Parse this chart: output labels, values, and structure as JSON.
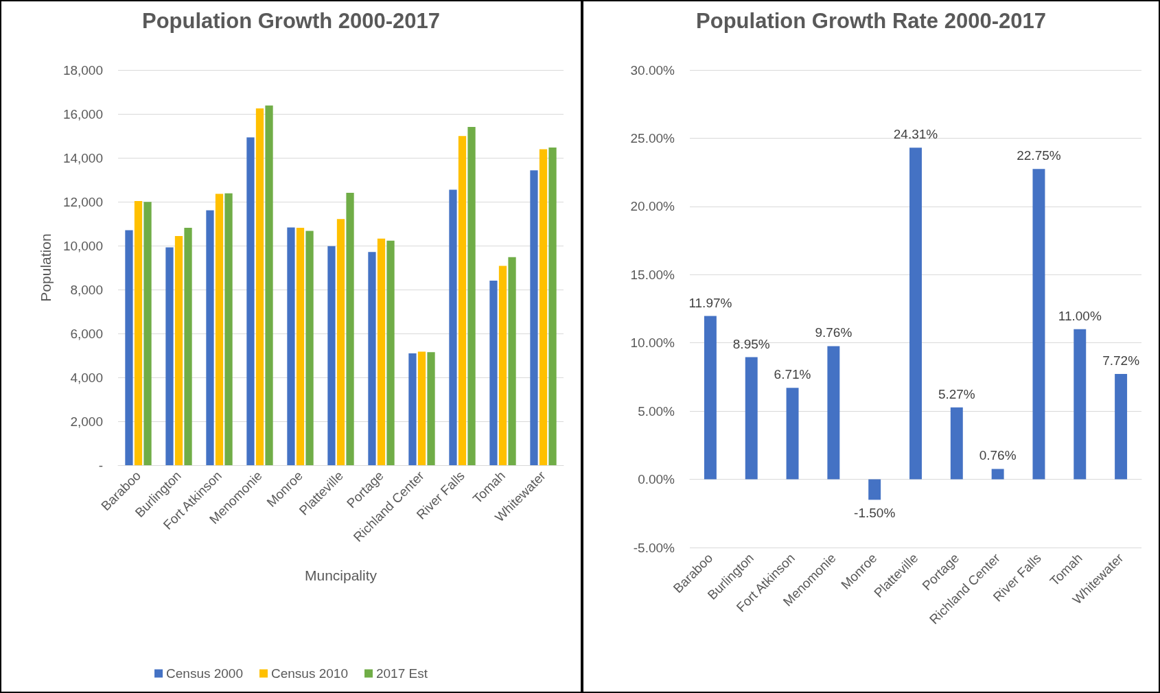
{
  "chart_data": [
    {
      "type": "bar",
      "title": "Population Growth 2000-2017",
      "xlabel": "Muncipality",
      "ylabel": "Population",
      "categories": [
        "Baraboo",
        "Burlington",
        "Fort Atkinson",
        "Menomonie",
        "Monroe",
        "Platteville",
        "Portage",
        "Richland Center",
        "River Falls",
        "Tomah",
        "Whitewater"
      ],
      "series": [
        {
          "name": "Census 2000",
          "color": "#4472c4",
          "values": [
            10700,
            9920,
            11610,
            14930,
            10830,
            9980,
            9710,
            5090,
            12550,
            8410,
            13430
          ]
        },
        {
          "name": "Census 2010",
          "color": "#ffc000",
          "values": [
            12030,
            10440,
            12360,
            16250,
            10810,
            11210,
            10320,
            5170,
            14990,
            9080,
            14390
          ]
        },
        {
          "name": "2017 Est",
          "color": "#70ad47",
          "values": [
            11990,
            10810,
            12380,
            16380,
            10670,
            12410,
            10230,
            5150,
            15410,
            9480,
            14470
          ]
        }
      ],
      "ylim": [
        0,
        18000
      ],
      "yticks": [
        {
          "value": 0,
          "label": "-"
        },
        {
          "value": 2000,
          "label": "2,000"
        },
        {
          "value": 4000,
          "label": "4,000"
        },
        {
          "value": 6000,
          "label": "6,000"
        },
        {
          "value": 8000,
          "label": "8,000"
        },
        {
          "value": 10000,
          "label": "10,000"
        },
        {
          "value": 12000,
          "label": "12,000"
        },
        {
          "value": 14000,
          "label": "14,000"
        },
        {
          "value": 16000,
          "label": "16,000"
        },
        {
          "value": 18000,
          "label": "18,000"
        }
      ],
      "grid": "y",
      "legend": "bottom"
    },
    {
      "type": "bar",
      "title": "Population Growth Rate 2000-2017",
      "categories": [
        "Baraboo",
        "Burlington",
        "Fort Atkinson",
        "Menomonie",
        "Monroe",
        "Platteville",
        "Portage",
        "Richland Center",
        "River Falls",
        "Tomah",
        "Whitewater"
      ],
      "values": [
        11.97,
        8.95,
        6.71,
        9.76,
        -1.5,
        24.31,
        5.27,
        0.76,
        22.75,
        11.0,
        7.72
      ],
      "value_labels": [
        "11.97%",
        "8.95%",
        "6.71%",
        "9.76%",
        "-1.50%",
        "24.31%",
        "5.27%",
        "0.76%",
        "22.75%",
        "11.00%",
        "7.72%"
      ],
      "color": "#4472c4",
      "ylim": [
        -5,
        30
      ],
      "yticks": [
        {
          "value": -5,
          "label": "-5.00%"
        },
        {
          "value": 0,
          "label": "0.00%"
        },
        {
          "value": 5,
          "label": "5.00%"
        },
        {
          "value": 10,
          "label": "10.00%"
        },
        {
          "value": 15,
          "label": "15.00%"
        },
        {
          "value": 20,
          "label": "20.00%"
        },
        {
          "value": 25,
          "label": "25.00%"
        },
        {
          "value": 30,
          "label": "30.00%"
        }
      ],
      "grid": "y"
    }
  ]
}
